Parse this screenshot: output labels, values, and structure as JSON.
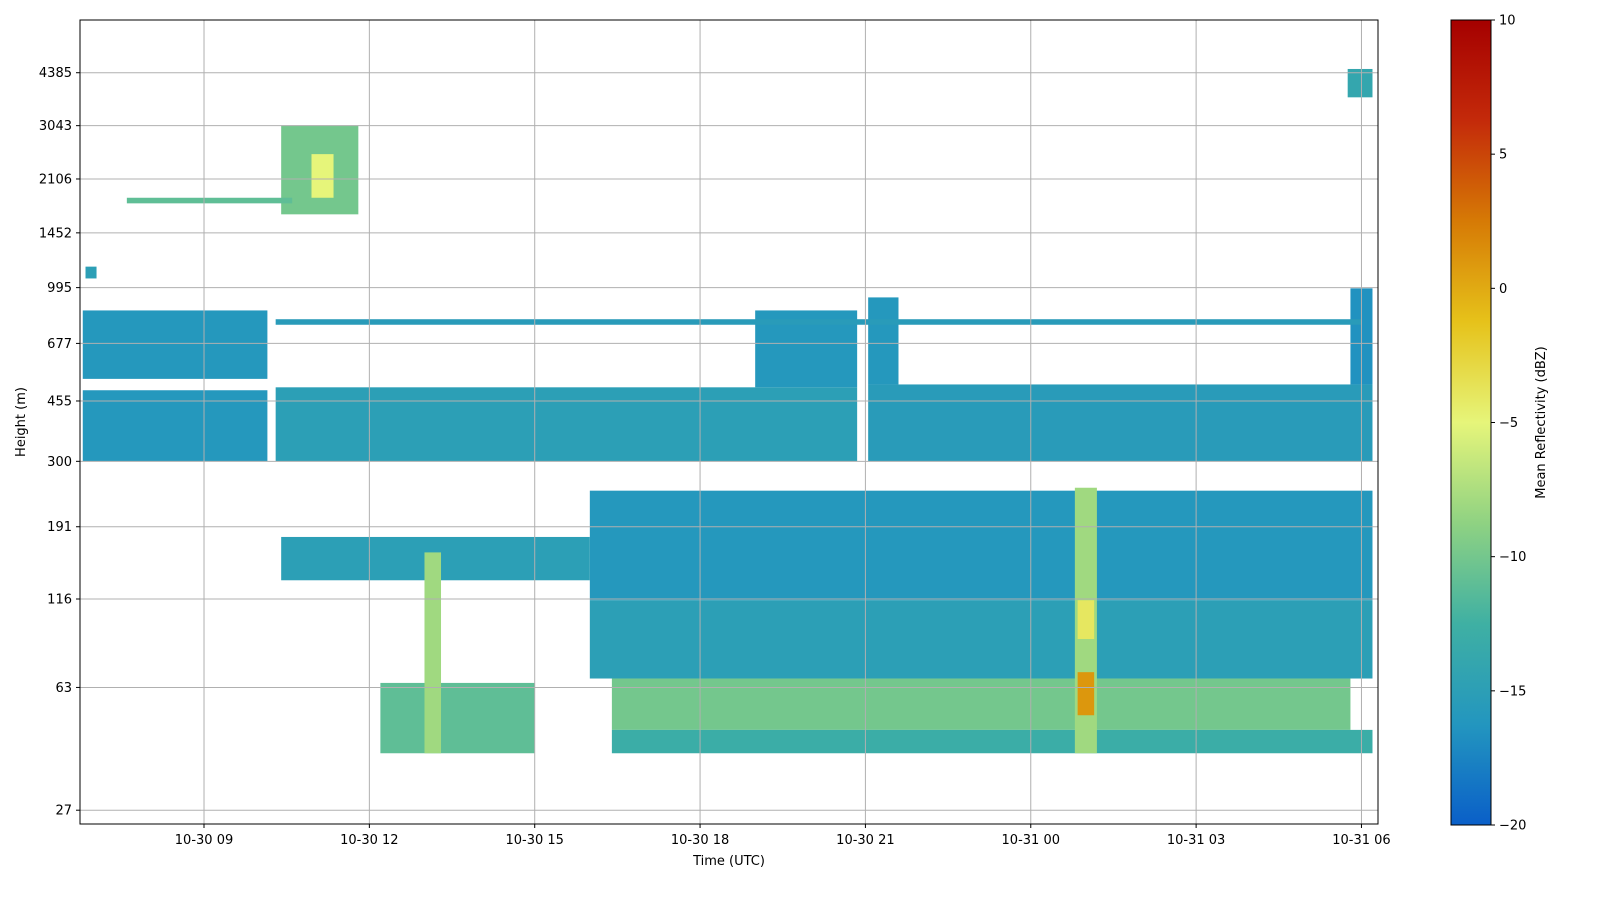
{
  "chart_data": {
    "type": "heatmap",
    "title": "",
    "xlabel": "Time (UTC)",
    "ylabel": "Height (m)",
    "x_range_hours": [
      6.75,
      30.3
    ],
    "y_log_range": [
      1.39,
      3.8
    ],
    "x_ticks": [
      {
        "label": "10-30 09",
        "hour": 9
      },
      {
        "label": "10-30 12",
        "hour": 12
      },
      {
        "label": "10-30 15",
        "hour": 15
      },
      {
        "label": "10-30 18",
        "hour": 18
      },
      {
        "label": "10-30 21",
        "hour": 21
      },
      {
        "label": "10-31 00",
        "hour": 24
      },
      {
        "label": "10-31 03",
        "hour": 27
      },
      {
        "label": "10-31 06",
        "hour": 30
      }
    ],
    "y_ticks": [
      {
        "label": "27",
        "value": 27
      },
      {
        "label": "63",
        "value": 63
      },
      {
        "label": "116",
        "value": 116
      },
      {
        "label": "191",
        "value": 191
      },
      {
        "label": "300",
        "value": 300
      },
      {
        "label": "455",
        "value": 455
      },
      {
        "label": "677",
        "value": 677
      },
      {
        "label": "995",
        "value": 995
      },
      {
        "label": "1452",
        "value": 1452
      },
      {
        "label": "2106",
        "value": 2106
      },
      {
        "label": "3043",
        "value": 3043
      },
      {
        "label": "4385",
        "value": 4385
      }
    ],
    "grid": true,
    "colorbar": {
      "label": "Mean Reflectivity (dBZ)",
      "min": -20,
      "max": 10,
      "ticks": [
        {
          "label": "10",
          "value": 10
        },
        {
          "label": "5",
          "value": 5
        },
        {
          "label": "0",
          "value": 0
        },
        {
          "label": "−5",
          "value": -5
        },
        {
          "label": "−10",
          "value": -10
        },
        {
          "label": "−15",
          "value": -15
        },
        {
          "label": "−20",
          "value": -20
        }
      ],
      "colormap": [
        "#0a5fc8",
        "#2396bf",
        "#3fb0a3",
        "#8fd282",
        "#e6f57a",
        "#e6c21a",
        "#d67a05",
        "#c42a0a",
        "#a50000"
      ]
    },
    "regions": [
      {
        "name": "upper-cloud-layer",
        "t0": 6.8,
        "t1": 10.15,
        "h0": 530,
        "h1": 850,
        "dbz": -16
      },
      {
        "name": "upper-cloud-layer",
        "t0": 6.8,
        "t1": 10.15,
        "h0": 300,
        "h1": 490,
        "dbz": -16
      },
      {
        "name": "upper-cloud-layer",
        "t0": 10.3,
        "t1": 20.85,
        "h0": 300,
        "h1": 500,
        "dbz": -15
      },
      {
        "name": "upper-cloud-layer",
        "t0": 19.0,
        "t1": 20.85,
        "h0": 500,
        "h1": 850,
        "dbz": -16
      },
      {
        "name": "upper-cloud-layer",
        "t0": 21.05,
        "t1": 30.2,
        "h0": 300,
        "h1": 510,
        "dbz": -15.5
      },
      {
        "name": "upper-cloud-layer",
        "t0": 21.05,
        "t1": 21.6,
        "h0": 510,
        "h1": 930,
        "dbz": -16
      },
      {
        "name": "upper-cloud-layer",
        "t0": 29.8,
        "t1": 30.2,
        "h0": 510,
        "h1": 990,
        "dbz": -16.5
      },
      {
        "name": "mid-cloud-band",
        "t0": 10.3,
        "t1": 30.0,
        "h0": 770,
        "h1": 800,
        "dbz": -15.5
      },
      {
        "name": "lower-cloud-layer",
        "t0": 16.0,
        "t1": 30.2,
        "h0": 115,
        "h1": 245,
        "dbz": -16
      },
      {
        "name": "lower-cloud-layer",
        "t0": 16.0,
        "t1": 30.2,
        "h0": 67,
        "h1": 115,
        "dbz": -15
      },
      {
        "name": "lower-cloud-layer",
        "t0": 10.4,
        "t1": 16.0,
        "h0": 132,
        "h1": 178,
        "dbz": -15
      },
      {
        "name": "surface-layer",
        "t0": 16.4,
        "t1": 29.8,
        "h0": 47,
        "h1": 67,
        "dbz": -10
      },
      {
        "name": "surface-layer",
        "t0": 16.4,
        "t1": 30.2,
        "h0": 40,
        "h1": 47,
        "dbz": -13
      },
      {
        "name": "surface-layer",
        "t0": 12.2,
        "t1": 15.0,
        "h0": 40,
        "h1": 65,
        "dbz": -11
      },
      {
        "name": "elevated-cell",
        "t0": 10.4,
        "t1": 11.8,
        "h0": 1650,
        "h1": 3050,
        "dbz": -10
      },
      {
        "name": "elevated-cell-core",
        "t0": 10.95,
        "t1": 11.35,
        "h0": 1850,
        "h1": 2500,
        "dbz": -5
      },
      {
        "name": "elevated-band",
        "t0": 7.6,
        "t1": 10.6,
        "h0": 1780,
        "h1": 1850,
        "dbz": -11
      },
      {
        "name": "high-cloud",
        "t0": 29.75,
        "t1": 30.2,
        "h0": 3700,
        "h1": 4500,
        "dbz": -14
      },
      {
        "name": "precip-column",
        "t0": 24.8,
        "t1": 25.2,
        "h0": 40,
        "h1": 250,
        "dbz": -8
      },
      {
        "name": "precip-core",
        "t0": 24.85,
        "t1": 25.15,
        "h0": 52,
        "h1": 70,
        "dbz": 1
      },
      {
        "name": "precip-core",
        "t0": 24.85,
        "t1": 25.15,
        "h0": 88,
        "h1": 115,
        "dbz": -4
      },
      {
        "name": "convective-streak",
        "t0": 13.0,
        "t1": 13.3,
        "h0": 40,
        "h1": 160,
        "dbz": -8
      },
      {
        "name": "small-patch",
        "t0": 6.85,
        "t1": 7.05,
        "h0": 1060,
        "h1": 1150,
        "dbz": -15
      }
    ]
  }
}
